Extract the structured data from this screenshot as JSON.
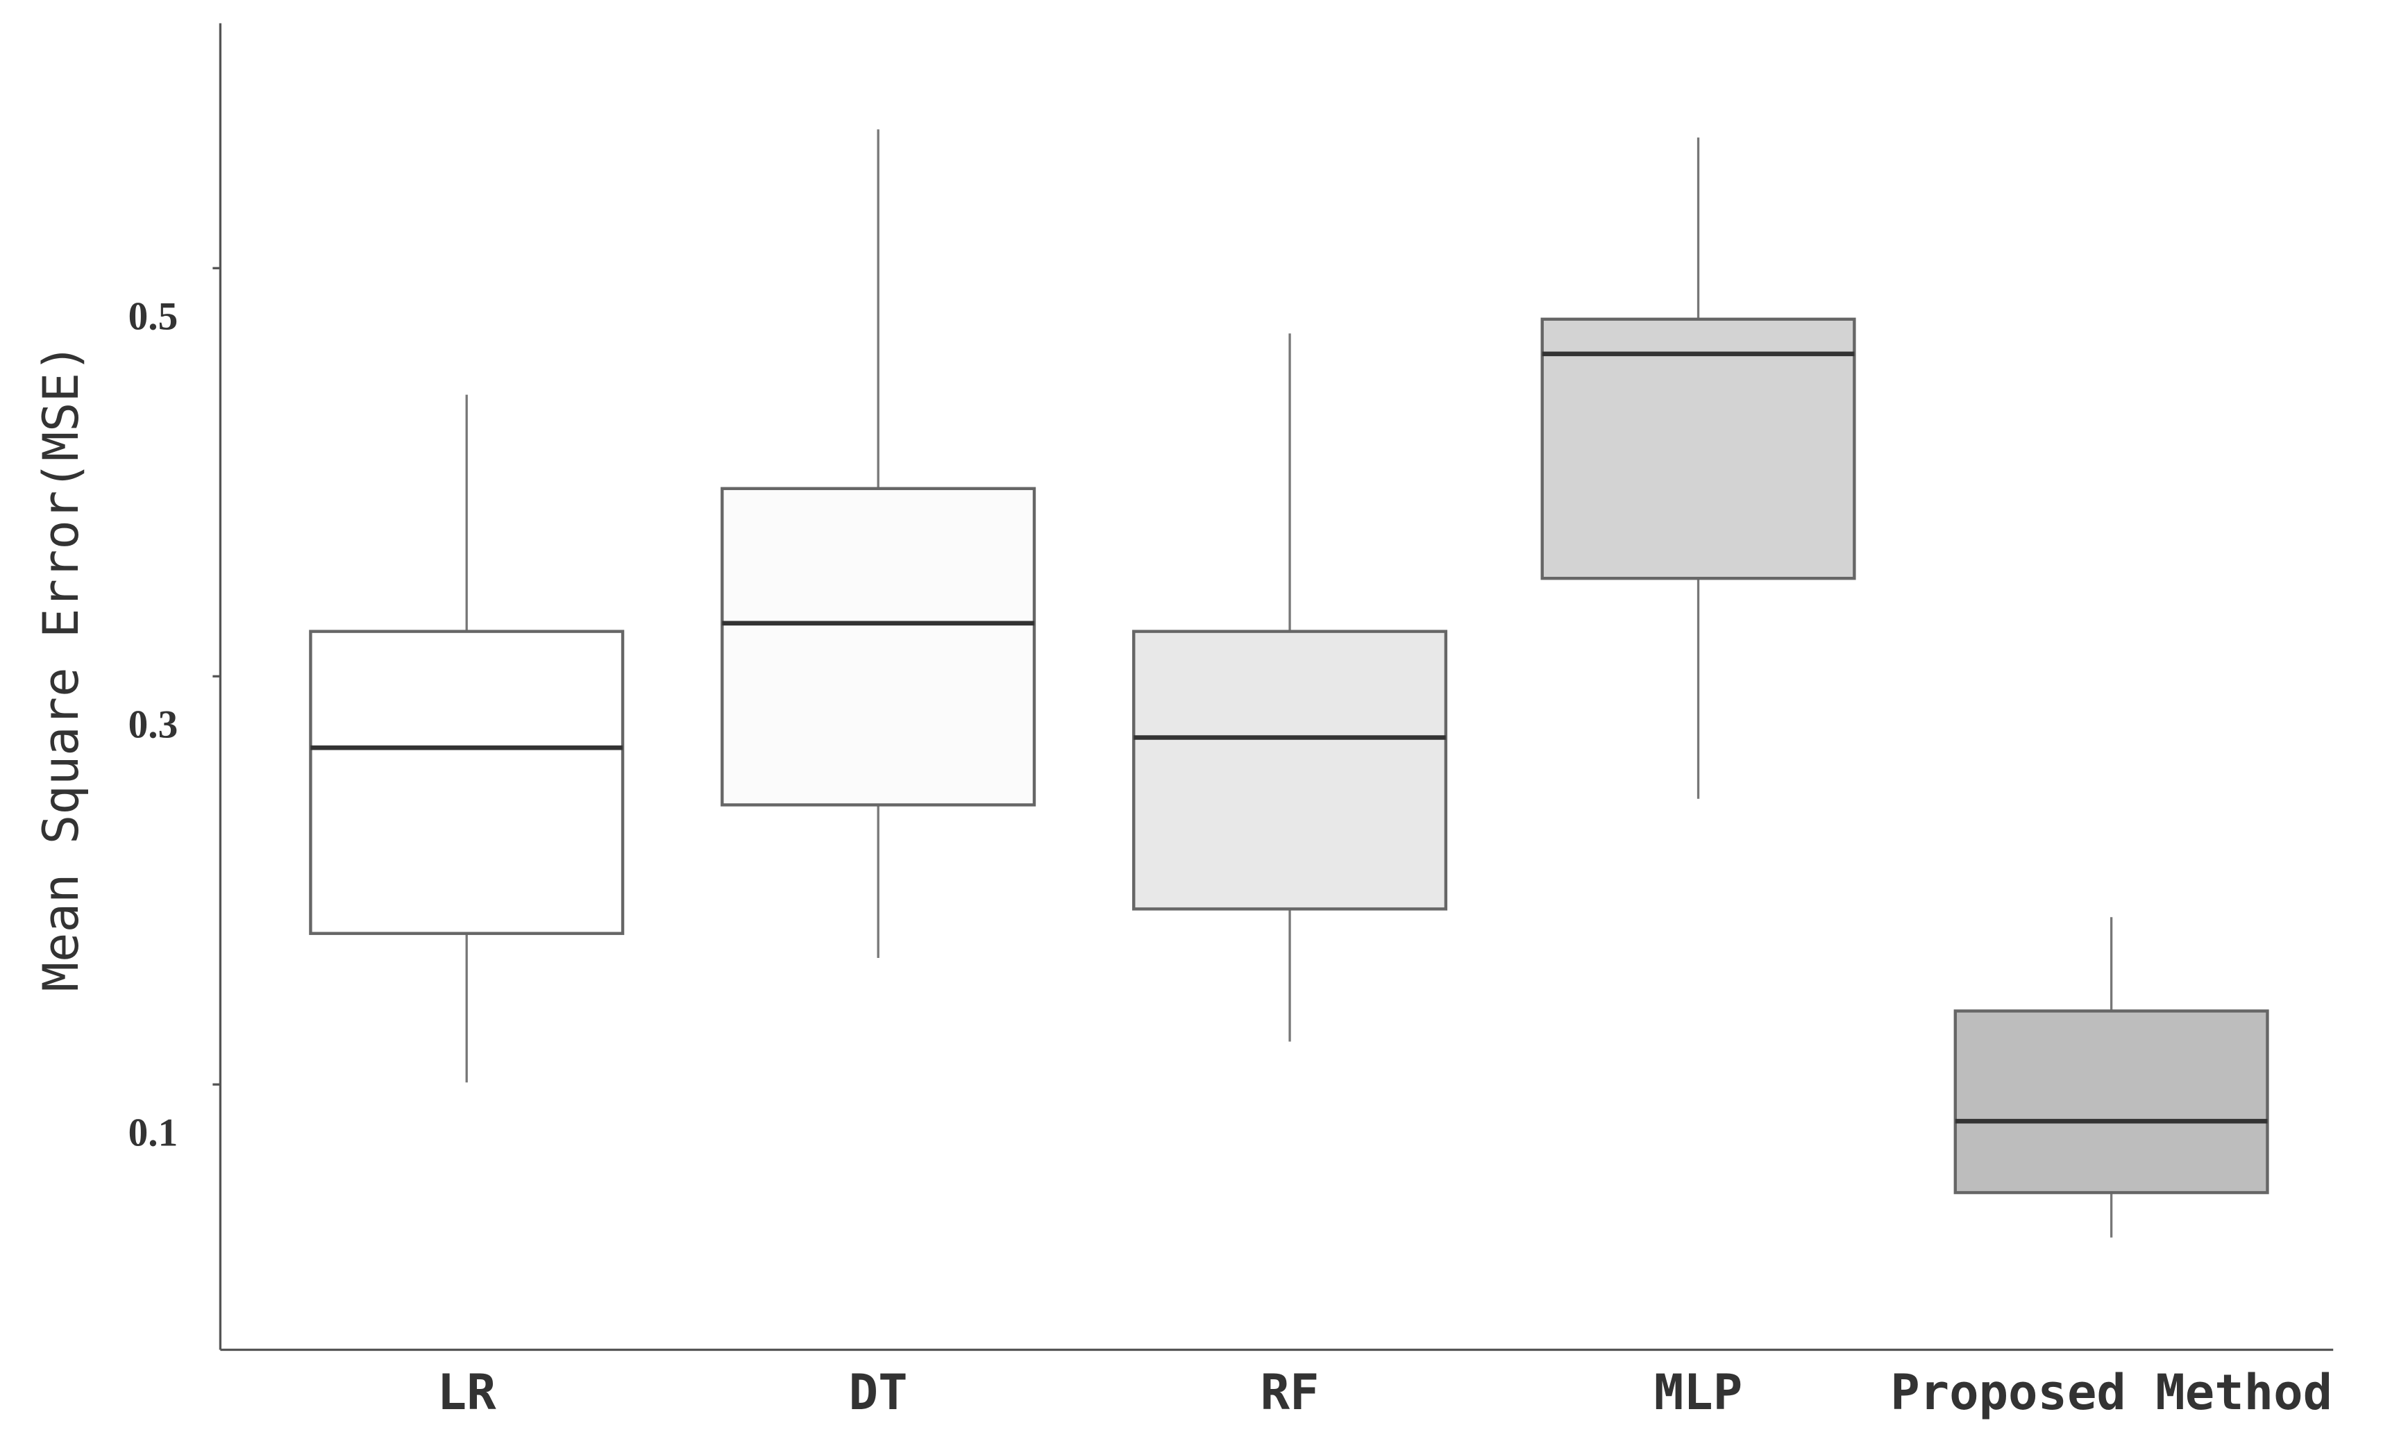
{
  "chart_data": {
    "type": "box",
    "y_label": "Mean Square Error(MSE)",
    "categories": [
      "LR",
      "DT",
      "RF",
      "MLP",
      "Proposed Method"
    ],
    "boxes": [
      {
        "whislo": 0.101,
        "q1": 0.174,
        "med": 0.265,
        "q3": 0.322,
        "whishi": 0.438
      },
      {
        "whislo": 0.162,
        "q1": 0.237,
        "med": 0.326,
        "q3": 0.392,
        "whishi": 0.568
      },
      {
        "whislo": 0.121,
        "q1": 0.186,
        "med": 0.27,
        "q3": 0.322,
        "whishi": 0.468
      },
      {
        "whislo": 0.24,
        "q1": 0.348,
        "med": 0.458,
        "q3": 0.475,
        "whishi": 0.564
      },
      {
        "whislo": 0.025,
        "q1": 0.047,
        "med": 0.082,
        "q3": 0.136,
        "whishi": 0.182
      }
    ],
    "colors": [
      "#ffffff",
      "#fbfbfb",
      "#e8e8e8",
      "#d3d3d3",
      "#bdbdbd"
    ],
    "ylim": [
      -0.03,
      0.62
    ],
    "yticks": [
      0.1,
      0.3,
      0.5
    ]
  }
}
